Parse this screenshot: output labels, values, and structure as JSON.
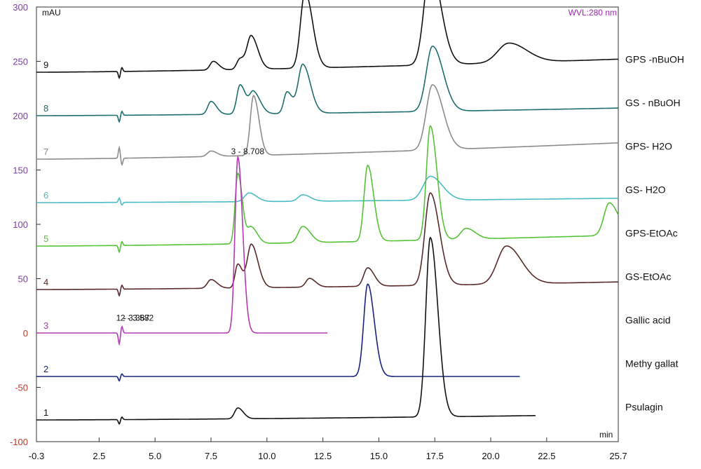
{
  "chart_data": {
    "type": "line",
    "title": "",
    "header": {
      "left": "",
      "center": "",
      "right": ""
    },
    "wavelength_label": "WVL:280 nm",
    "y_unit": "mAU",
    "x_unit": "min",
    "xlim": [
      -0.3,
      25.7
    ],
    "ylim": [
      -100,
      300
    ],
    "x_ticks": [
      "-0.3",
      "2.5",
      "5.0",
      "7.5",
      "10.0",
      "12.5",
      "15.0",
      "17.5",
      "20.0",
      "22.5",
      "25.7"
    ],
    "x_tick_values": [
      -0.3,
      2.5,
      5.0,
      7.5,
      10.0,
      12.5,
      15.0,
      17.5,
      20.0,
      22.5,
      25.7
    ],
    "y_ticks": [
      "-100",
      "-50",
      "0",
      "50",
      "100",
      "150",
      "200",
      "250",
      "300"
    ],
    "y_tick_values": [
      -100,
      -50,
      0,
      50,
      100,
      150,
      200,
      250,
      300
    ],
    "peak_annotations": [
      {
        "text": "3 - 8.708",
        "x": 8.71,
        "y": 162
      },
      {
        "text": "1 - 3.387",
        "x": 3.39,
        "y": 6
      },
      {
        "text": "2 - 3.582",
        "x": 3.58,
        "y": 6
      }
    ],
    "series": [
      {
        "id": "9",
        "name": "GPS -nBuOH",
        "color": "#111111",
        "baseline": 240,
        "x_end": 25.7,
        "end_y": 252,
        "peaks": [
          [
            7.6,
            8,
            0.18
          ],
          [
            8.8,
            10,
            0.18
          ],
          [
            9.3,
            30,
            0.22
          ],
          [
            11.7,
            70,
            0.25
          ],
          [
            17.3,
            90,
            0.35
          ],
          [
            20.8,
            18,
            0.6
          ]
        ],
        "dip": [
          3.4,
          -6
        ]
      },
      {
        "id": "8",
        "name": "GS - nBuOH",
        "color": "#1f6e6e",
        "baseline": 200,
        "x_end": 25.7,
        "end_y": 207,
        "peaks": [
          [
            7.5,
            12,
            0.18
          ],
          [
            8.8,
            27,
            0.18
          ],
          [
            9.4,
            20,
            0.22
          ],
          [
            10.9,
            20,
            0.18
          ],
          [
            11.6,
            45,
            0.25
          ],
          [
            17.4,
            60,
            0.35
          ]
        ],
        "dip": [
          3.4,
          -6
        ]
      },
      {
        "id": "7",
        "name": "GPS- H2O",
        "color": "#8c8c8c",
        "baseline": 160,
        "x_end": 25.7,
        "end_y": 175,
        "peaks": [
          [
            7.5,
            5,
            0.2
          ],
          [
            9.4,
            55,
            0.18
          ],
          [
            17.4,
            60,
            0.35
          ]
        ],
        "dip": [
          3.4,
          10
        ]
      },
      {
        "id": "6",
        "name": "GS- H2O",
        "color": "#4bbcc4",
        "baseline": 120,
        "x_end": 25.7,
        "end_y": 124,
        "peaks": [
          [
            9.2,
            8,
            0.25
          ],
          [
            11.6,
            6,
            0.25
          ],
          [
            17.3,
            22,
            0.4
          ]
        ],
        "dip": [
          3.4,
          4
        ]
      },
      {
        "id": "5",
        "name": "GPS-EtOAc",
        "color": "#55c238",
        "baseline": 80,
        "x_end": 25.7,
        "end_y": 90,
        "peaks": [
          [
            8.7,
            65,
            0.15
          ],
          [
            9.3,
            15,
            0.2
          ],
          [
            11.6,
            15,
            0.25
          ],
          [
            14.5,
            70,
            0.2
          ],
          [
            17.3,
            105,
            0.22
          ],
          [
            18.9,
            10,
            0.3
          ],
          [
            25.3,
            30,
            0.3
          ]
        ],
        "dip": [
          3.4,
          -6
        ]
      },
      {
        "id": "4",
        "name": "GS-EtOAc",
        "color": "#5a2a2a",
        "baseline": 40,
        "x_end": 25.7,
        "end_y": 47,
        "peaks": [
          [
            7.5,
            8,
            0.2
          ],
          [
            8.7,
            22,
            0.15
          ],
          [
            9.3,
            40,
            0.22
          ],
          [
            11.9,
            8,
            0.2
          ],
          [
            14.5,
            17,
            0.22
          ],
          [
            17.3,
            85,
            0.3
          ],
          [
            20.7,
            35,
            0.5
          ]
        ],
        "dip": [
          3.4,
          -6
        ]
      },
      {
        "id": "3",
        "name": "Gallic acid",
        "color": "#b43ab4",
        "baseline": 0,
        "x_end": 12.7,
        "end_y": 0,
        "peaks": [
          [
            8.7,
            162,
            0.16
          ]
        ],
        "dip": [
          3.4,
          -10
        ]
      },
      {
        "id": "2",
        "name": "Methy gallat",
        "color": "#1a237e",
        "baseline": -40,
        "x_end": 21.3,
        "end_y": -40,
        "peaks": [
          [
            14.5,
            85,
            0.22
          ]
        ],
        "dip": [
          3.4,
          -4
        ]
      },
      {
        "id": "1",
        "name": "Psulagin",
        "color": "#111111",
        "baseline": -80,
        "x_end": 22.0,
        "end_y": -76,
        "peaks": [
          [
            8.7,
            10,
            0.18
          ],
          [
            17.3,
            165,
            0.25
          ]
        ],
        "dip": [
          3.4,
          -4
        ]
      }
    ]
  }
}
